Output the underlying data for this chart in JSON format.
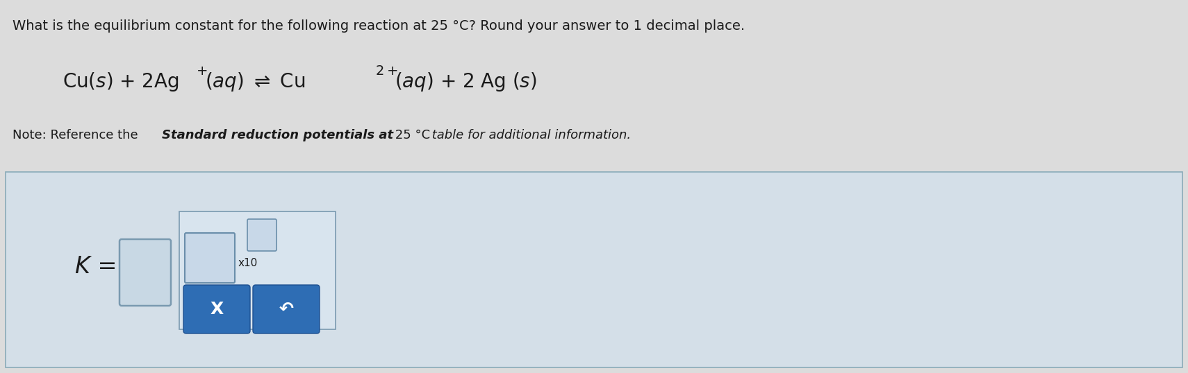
{
  "bg_color": "#dcdcdc",
  "text_color": "#1a1a1a",
  "title_line": "What is the equilibrium constant for the following reaction at 25 °C? Round your answer to 1 decimal place.",
  "k_label": "K =",
  "box_fill": "#c8d8e4",
  "box_border": "#7a9ab0",
  "panel_fill": "#d4dfe8",
  "panel_border": "#8aabb8",
  "button_fill": "#2e6db4",
  "button_border": "#1e5090",
  "button_x": "X",
  "button_undo": "↶",
  "small_box_fill": "#c8d8e8",
  "small_box_border": "#6a8eaa",
  "inner_panel_fill": "#d8e4ee",
  "inner_panel_border": "#7a9ab0",
  "eq_fontsize": 20,
  "title_fontsize": 14,
  "note_fontsize": 13
}
